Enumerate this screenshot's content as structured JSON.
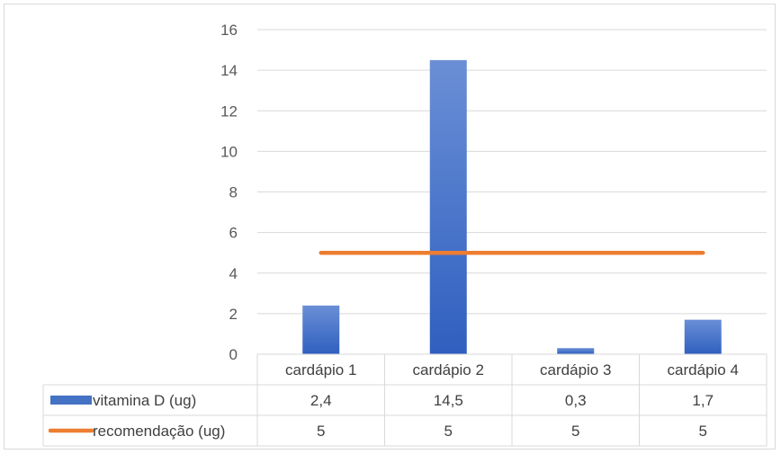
{
  "chart_data": {
    "type": "bar",
    "categories": [
      "cardápio 1",
      "cardápio 2",
      "cardápio 3",
      "cardápio 4"
    ],
    "series": [
      {
        "name": "vitamina D (ug)",
        "type": "bar",
        "color": "#4472c4",
        "values": [
          2.4,
          14.5,
          0.3,
          1.7
        ],
        "value_labels": [
          "2,4",
          "14,5",
          "0,3",
          "1,7"
        ]
      },
      {
        "name": "recomendação (ug)",
        "type": "line",
        "color": "#ed7d31",
        "values": [
          5,
          5,
          5,
          5
        ],
        "value_labels": [
          "5",
          "5",
          "5",
          "5"
        ]
      }
    ],
    "ylim": [
      0,
      16
    ],
    "yticks": [
      0,
      2,
      4,
      6,
      8,
      10,
      12,
      14,
      16
    ],
    "grid": true,
    "data_table": true
  }
}
